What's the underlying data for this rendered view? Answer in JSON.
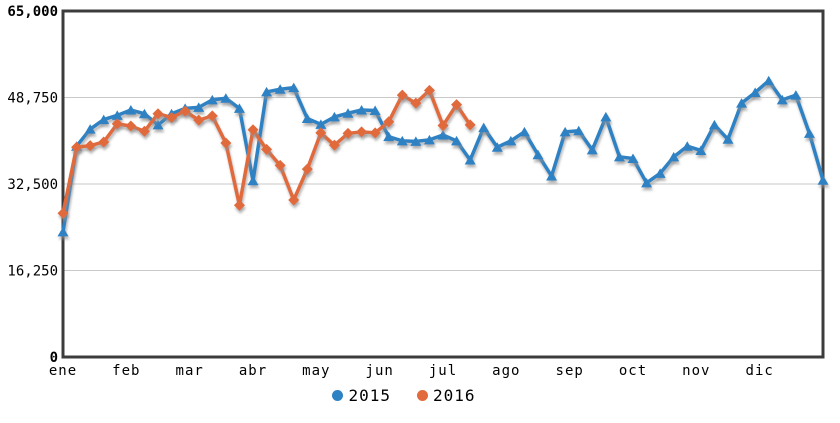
{
  "style": {
    "background": "#ffffff",
    "border_color": "#3c3c3c",
    "grid_color": "#c9c9c9",
    "shadow_color": "#8f8f8f",
    "text_color": "#000000"
  },
  "chart_data": {
    "type": "line",
    "title": "",
    "xlabel": "",
    "ylabel": "",
    "ylim": [
      0,
      65000
    ],
    "grid": "horizontal-only",
    "legend_position": "bottom-center",
    "x_axis": {
      "months": [
        "ene",
        "feb",
        "mar",
        "abr",
        "may",
        "jun",
        "jul",
        "ago",
        "sep",
        "oct",
        "nov",
        "dic"
      ]
    },
    "y_axis": {
      "tick_values": [
        0,
        16250,
        32500,
        48750,
        65000
      ],
      "tick_labels": [
        "0",
        "16,250",
        "32,500",
        "48,750",
        "65,000"
      ],
      "bold_tick_labels": [
        "0",
        "65,000"
      ]
    },
    "series": [
      {
        "name": "2015",
        "color": "#2d82c4",
        "marker": "triangle",
        "values": [
          23500,
          39600,
          42800,
          44600,
          45400,
          46400,
          45700,
          43600,
          45700,
          46700,
          46900,
          48300,
          48600,
          46700,
          33100,
          49800,
          50300,
          50600,
          44800,
          43700,
          45100,
          45800,
          46400,
          46300,
          41400,
          40600,
          40500,
          40800,
          41700,
          40600,
          37000,
          43100,
          39400,
          40600,
          42300,
          38000,
          34000,
          42300,
          42500,
          38900,
          45100,
          37600,
          37300,
          32700,
          34500,
          37600,
          39600,
          38800,
          43600,
          40900,
          47700,
          49700,
          51900,
          48300,
          49200,
          42000,
          33200
        ]
      },
      {
        "name": "2016",
        "color": "#e16b3d",
        "marker": "diamond",
        "values": [
          27000,
          39400,
          39700,
          40400,
          43800,
          43400,
          42400,
          45700,
          45000,
          46200,
          44500,
          45300,
          40200,
          28500,
          42700,
          39000,
          36000,
          29500,
          35300,
          42100,
          39800,
          42000,
          42300,
          42100,
          44200,
          49200,
          47700,
          50100,
          43500,
          47400,
          43600
        ]
      }
    ]
  },
  "legend": {
    "items": [
      {
        "label": "2015",
        "color": "#2d82c4"
      },
      {
        "label": "2016",
        "color": "#e16b3d"
      }
    ]
  }
}
